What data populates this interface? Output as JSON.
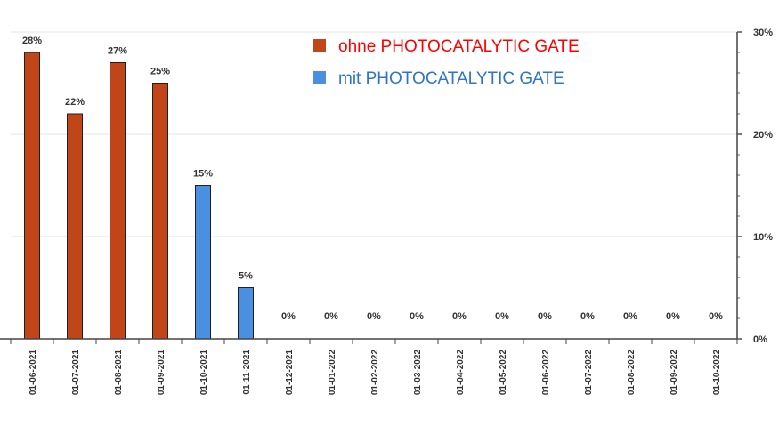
{
  "chart_data": {
    "type": "bar",
    "categories": [
      "01-06-2021",
      "01-07-2021",
      "01-08-2021",
      "01-09-2021",
      "01-10-2021",
      "01-11-2021",
      "01-12-2021",
      "01-01-2022",
      "01-02-2022",
      "01-03-2022",
      "01-04-2022",
      "01-05-2022",
      "01-06-2022",
      "01-07-2022",
      "01-08-2022",
      "01-09-2022",
      "01-10-2022"
    ],
    "values": [
      28,
      22,
      27,
      25,
      15,
      5,
      0,
      0,
      0,
      0,
      0,
      0,
      0,
      0,
      0,
      0,
      0
    ],
    "value_labels": [
      "28%",
      "22%",
      "27%",
      "25%",
      "15%",
      "5%",
      "0%",
      "0%",
      "0%",
      "0%",
      "0%",
      "0%",
      "0%",
      "0%",
      "0%",
      "0%",
      "0%"
    ],
    "bar_series": [
      "ohne",
      "ohne",
      "ohne",
      "ohne",
      "mit",
      "mit",
      "none",
      "none",
      "none",
      "none",
      "none",
      "none",
      "none",
      "none",
      "none",
      "none",
      "none"
    ],
    "series": [
      {
        "key": "ohne",
        "name": "ohne PHOTOCATALYTIC GATE",
        "color": "#C0461A",
        "text_color": "#FF0000"
      },
      {
        "key": "mit",
        "name": "mit PHOTOCATALYTIC GATE",
        "color": "#4A8FE0",
        "text_color": "#2E75C7"
      }
    ],
    "y_axis": {
      "position": "right",
      "ylim": [
        0,
        30
      ],
      "ticks": [
        0,
        10,
        20,
        30
      ],
      "tick_labels": [
        "0%",
        "10%",
        "20%",
        "30%"
      ]
    },
    "grid": true,
    "legend_position": "top-center"
  }
}
